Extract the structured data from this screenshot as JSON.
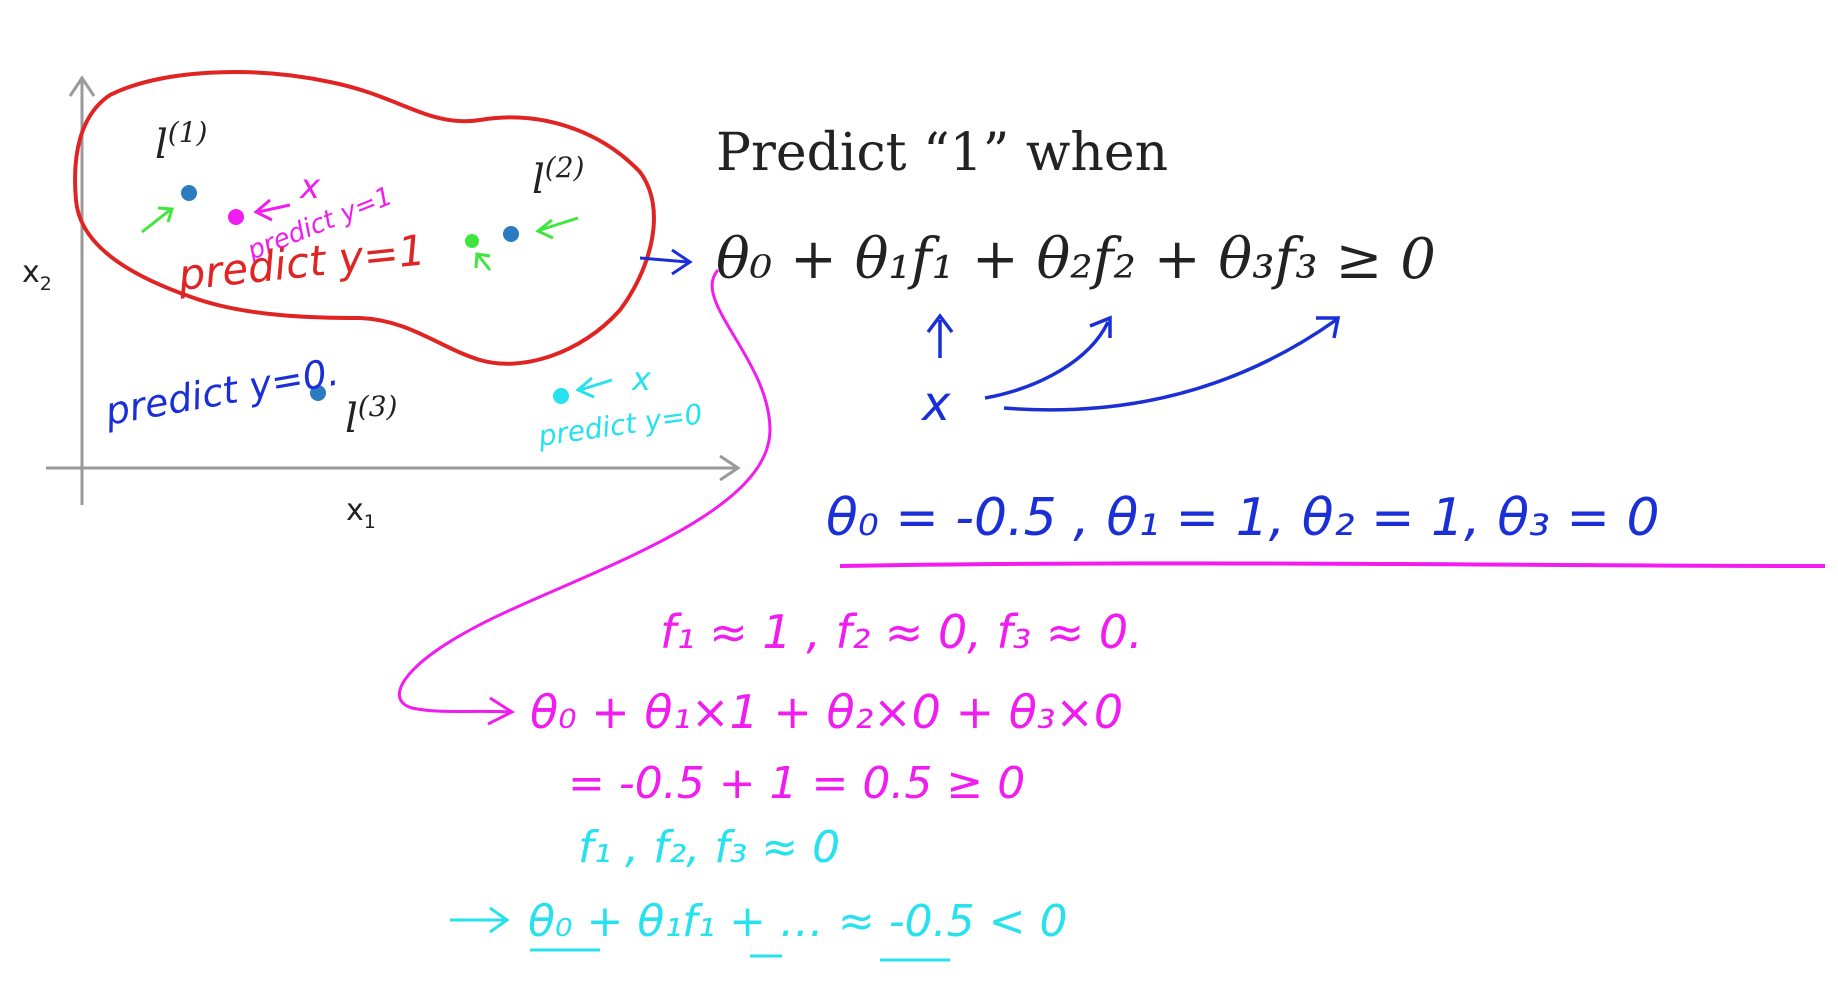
{
  "plot": {
    "x_axis_label": "x",
    "x_axis_sub": "1",
    "y_axis_label": "x",
    "y_axis_sub": "2",
    "landmarks": [
      {
        "name": "l",
        "sup": "(1)"
      },
      {
        "name": "l",
        "sup": "(2)"
      },
      {
        "name": "l",
        "sup": "(3)"
      }
    ],
    "annotations": {
      "region_inside": "predict y=1",
      "magenta_point_label": "predict y=1",
      "magenta_x": "x",
      "outside": "predict y=0.",
      "cyan_point_label": "predict y=0",
      "cyan_x": "x"
    }
  },
  "equation": {
    "heading": "Predict “1” when",
    "formula": "θ₀ + θ₁f₁ + θ₂f₂ + θ₃f₃ ≥ 0",
    "x_mark": "x"
  },
  "thetas": "θ₀ = -0.5 ,  θ₁ = 1,  θ₂ = 1,  θ₃ = 0",
  "magenta_work": [
    "f₁ ≈ 1 ,   f₂ ≈ 0,  f₃ ≈ 0.",
    "θ₀ + θ₁×1 + θ₂×0 + θ₃×0",
    "= -0.5 + 1   = 0.5 ≥ 0"
  ],
  "cyan_work": [
    "f₁ , f₂, f₃ ≈ 0",
    "θ₀ + θ₁f₁ + …  ≈ -0.5  <  0"
  ],
  "colors": {
    "ink_black": "#222222",
    "axis_gray": "#9a9a9a",
    "red": "#e02424",
    "blue": "#1a2fd6",
    "magenta": "#f01cf0",
    "cyan": "#27e2ee",
    "green": "#3ee63e",
    "point_blue": "#2a7bbf"
  }
}
